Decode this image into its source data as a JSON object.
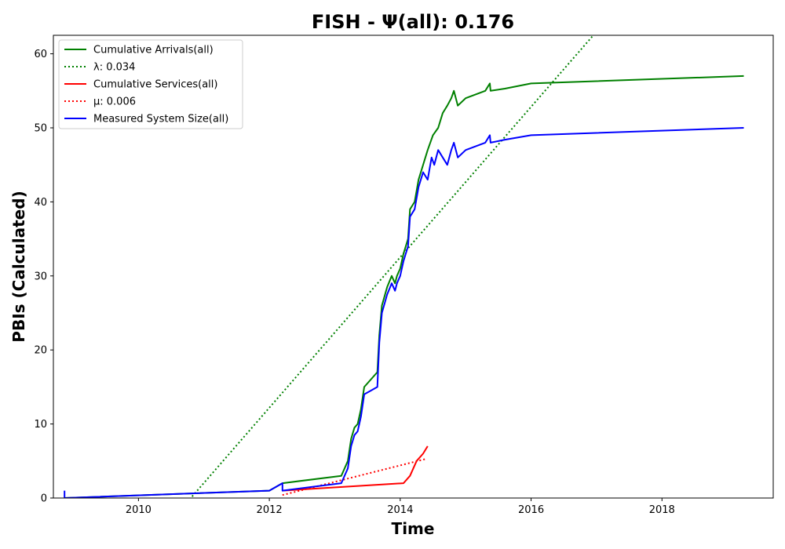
{
  "chart_data": {
    "type": "line",
    "title": "FISH -  Ψ(all): 0.176",
    "xlabel": "Time",
    "ylabel": "PBIs (Calculated)",
    "xlim": [
      2008.7,
      2019.7
    ],
    "ylim": [
      0,
      62.5
    ],
    "xticks": [
      2010,
      2012,
      2014,
      2016,
      2018
    ],
    "yticks": [
      0,
      10,
      20,
      30,
      40,
      50,
      60
    ],
    "legend_position": "top-left",
    "grid": false,
    "series": [
      {
        "name": "Cumulative Arrivals(all)",
        "color": "#008000",
        "style": "solid",
        "points": [
          [
            2008.87,
            0
          ],
          [
            2012.0,
            1
          ],
          [
            2012.2,
            2
          ],
          [
            2013.1,
            3
          ],
          [
            2013.2,
            5
          ],
          [
            2013.25,
            8
          ],
          [
            2013.3,
            9.5
          ],
          [
            2013.35,
            10
          ],
          [
            2013.4,
            12
          ],
          [
            2013.45,
            15
          ],
          [
            2013.55,
            16
          ],
          [
            2013.65,
            17
          ],
          [
            2013.68,
            22
          ],
          [
            2013.72,
            26
          ],
          [
            2013.8,
            28.5
          ],
          [
            2013.87,
            30
          ],
          [
            2013.92,
            29
          ],
          [
            2013.95,
            30
          ],
          [
            2014.0,
            31
          ],
          [
            2014.05,
            33
          ],
          [
            2014.12,
            35
          ],
          [
            2014.15,
            39
          ],
          [
            2014.22,
            40
          ],
          [
            2014.28,
            43
          ],
          [
            2014.35,
            45
          ],
          [
            2014.42,
            47
          ],
          [
            2014.5,
            49
          ],
          [
            2014.58,
            50
          ],
          [
            2014.65,
            52
          ],
          [
            2014.72,
            53
          ],
          [
            2014.78,
            54
          ],
          [
            2014.82,
            55
          ],
          [
            2014.88,
            53
          ],
          [
            2015.0,
            54
          ],
          [
            2015.3,
            55
          ],
          [
            2015.37,
            56
          ],
          [
            2015.38,
            55
          ],
          [
            2015.6,
            55.3
          ],
          [
            2016.0,
            56
          ],
          [
            2019.25,
            57
          ]
        ]
      },
      {
        "name": "λ: 0.034",
        "color": "#008000",
        "style": "dotted",
        "points": [
          [
            2010.82,
            0.2
          ],
          [
            2016.95,
            62.5
          ]
        ]
      },
      {
        "name": "Cumulative Services(all)",
        "color": "#ff0000",
        "style": "solid",
        "points": [
          [
            2012.2,
            1
          ],
          [
            2014.05,
            2
          ],
          [
            2014.15,
            3
          ],
          [
            2014.25,
            5
          ],
          [
            2014.35,
            6
          ],
          [
            2014.42,
            7
          ]
        ]
      },
      {
        "name": "μ: 0.006",
        "color": "#ff0000",
        "style": "dotted",
        "points": [
          [
            2012.2,
            0.4
          ],
          [
            2014.4,
            5.3
          ]
        ]
      },
      {
        "name": "Measured System Size(all)",
        "color": "#0000ff",
        "style": "solid",
        "points": [
          [
            2008.87,
            1
          ],
          [
            2008.87,
            0
          ],
          [
            2012.0,
            1
          ],
          [
            2012.2,
            2
          ],
          [
            2012.2,
            1
          ],
          [
            2013.1,
            2
          ],
          [
            2013.2,
            4
          ],
          [
            2013.25,
            7
          ],
          [
            2013.3,
            8.5
          ],
          [
            2013.35,
            9
          ],
          [
            2013.4,
            11
          ],
          [
            2013.45,
            14
          ],
          [
            2013.55,
            14.5
          ],
          [
            2013.65,
            15
          ],
          [
            2013.68,
            21
          ],
          [
            2013.72,
            25
          ],
          [
            2013.8,
            27.5
          ],
          [
            2013.87,
            29
          ],
          [
            2013.92,
            28
          ],
          [
            2013.95,
            29
          ],
          [
            2014.0,
            30
          ],
          [
            2014.05,
            32
          ],
          [
            2014.12,
            34
          ],
          [
            2014.15,
            38
          ],
          [
            2014.22,
            39
          ],
          [
            2014.28,
            42
          ],
          [
            2014.35,
            44
          ],
          [
            2014.42,
            43
          ],
          [
            2014.48,
            46
          ],
          [
            2014.52,
            45
          ],
          [
            2014.58,
            47
          ],
          [
            2014.65,
            46
          ],
          [
            2014.72,
            45
          ],
          [
            2014.78,
            47
          ],
          [
            2014.82,
            48
          ],
          [
            2014.88,
            46
          ],
          [
            2015.0,
            47
          ],
          [
            2015.3,
            48
          ],
          [
            2015.37,
            49
          ],
          [
            2015.38,
            48
          ],
          [
            2015.6,
            48.4
          ],
          [
            2016.0,
            49
          ],
          [
            2019.25,
            50
          ]
        ]
      }
    ]
  }
}
